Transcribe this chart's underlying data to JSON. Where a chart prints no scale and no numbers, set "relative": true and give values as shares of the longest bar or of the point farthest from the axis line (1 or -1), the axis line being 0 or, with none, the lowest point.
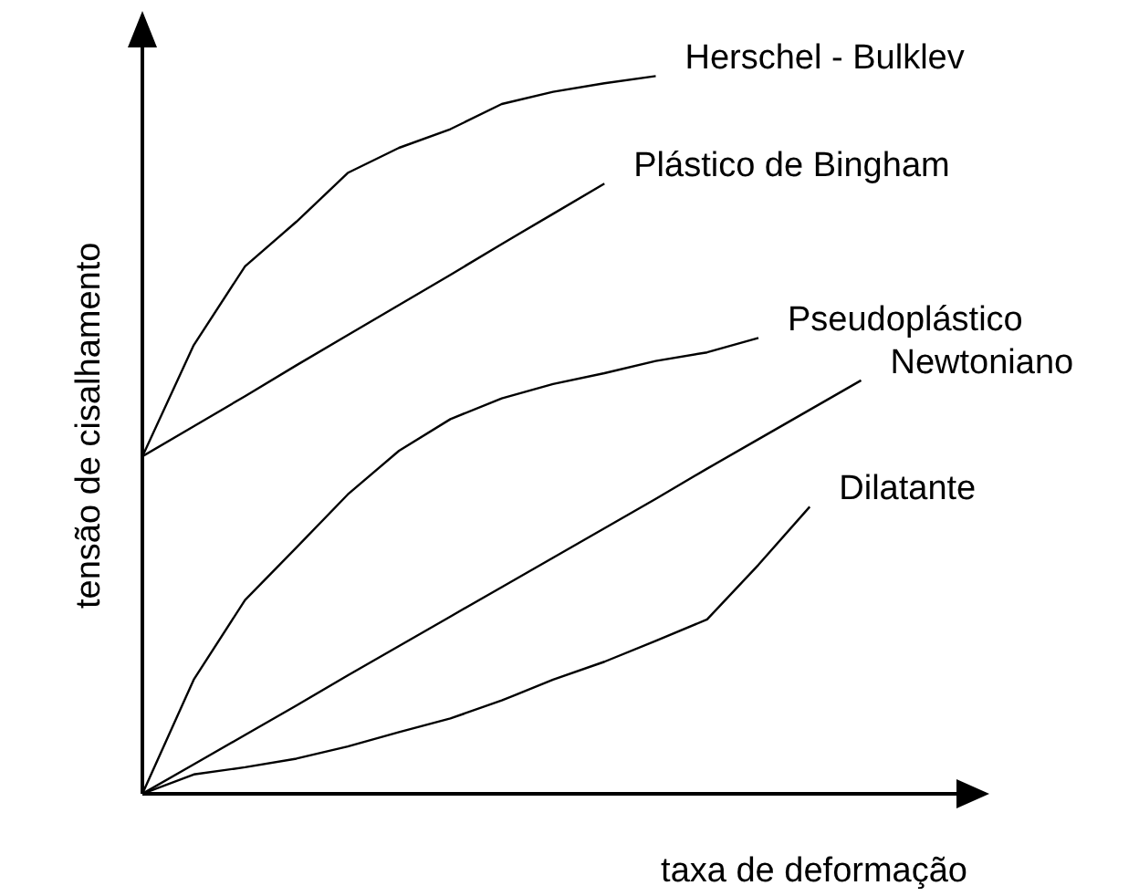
{
  "chart_data": {
    "type": "line",
    "xlabel": "taxa de deformação",
    "ylabel": "tensão de cisalhamento",
    "relative": true,
    "categories": [
      null,
      null,
      null,
      null,
      null,
      null,
      null,
      null,
      null,
      null,
      null,
      null,
      null,
      null,
      null,
      null,
      null
    ],
    "series": [
      {
        "name": "Herschel - Bulklev",
        "color": "#000000",
        "values": [
          0.47,
          0.625,
          0.735,
          0.797,
          0.865,
          0.9,
          0.926,
          0.961,
          0.978,
          0.99,
          1,
          null,
          null,
          null,
          null,
          null,
          null
        ]
      },
      {
        "name": "Plástico de Bingham",
        "color": "#000000",
        "values": [
          0.47,
          0.512,
          0.554,
          0.597,
          0.639,
          0.681,
          0.723,
          0.766,
          0.808,
          0.85,
          null,
          null,
          null,
          null,
          null,
          null,
          null
        ]
      },
      {
        "name": "Pseudoplástico",
        "color": "#000000",
        "values": [
          0,
          0.159,
          0.27,
          0.343,
          0.417,
          0.478,
          0.522,
          0.551,
          0.571,
          0.586,
          0.603,
          0.615,
          0.635,
          null,
          null,
          null,
          null
        ]
      },
      {
        "name": "Newtoniano",
        "color": "#000000",
        "values": [
          0,
          0.041,
          0.082,
          0.123,
          0.165,
          0.206,
          0.247,
          0.288,
          0.329,
          0.37,
          0.411,
          0.453,
          0.494,
          0.535,
          0.576,
          null,
          null
        ]
      },
      {
        "name": "Dilatante",
        "color": "#000000",
        "values": [
          0,
          0.027,
          0.037,
          0.049,
          0.066,
          0.086,
          0.105,
          0.13,
          0.159,
          0.184,
          0.213,
          0.243,
          0.319,
          0.4,
          null,
          null,
          null
        ]
      }
    ]
  }
}
